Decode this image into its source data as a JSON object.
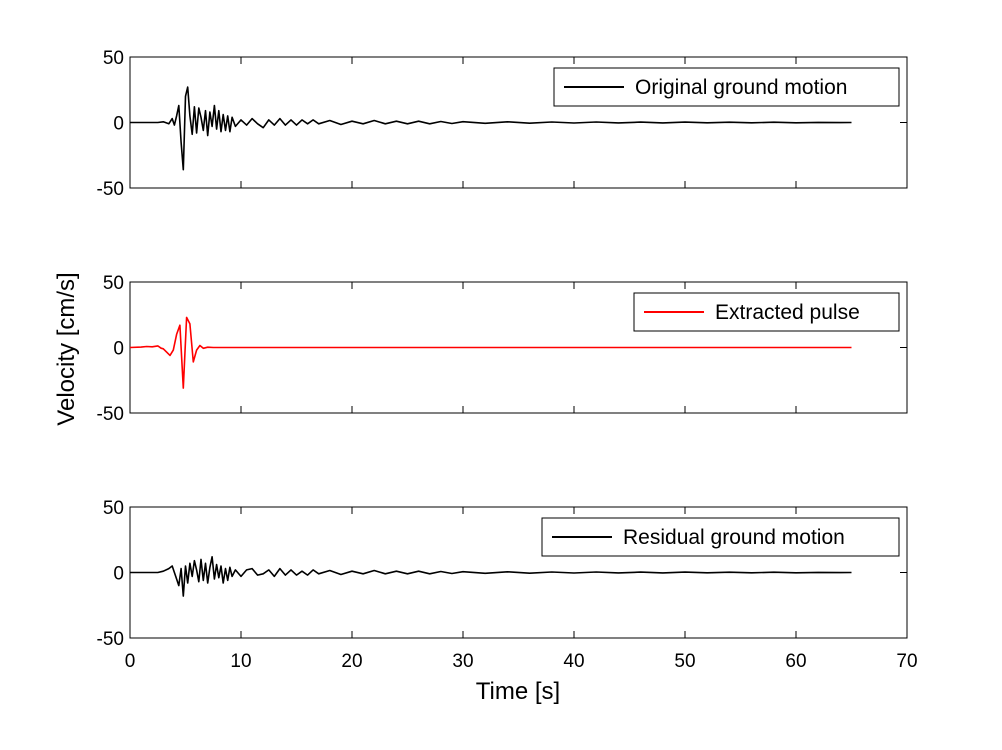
{
  "chart_data": {
    "type": "line",
    "xlabel": "Time [s]",
    "ylabel": "Velocity [cm/s]",
    "xlim": [
      0,
      70
    ],
    "xticks": [
      0,
      10,
      20,
      30,
      40,
      50,
      60,
      70
    ],
    "ylim": [
      -50,
      50
    ],
    "yticks": [
      -50,
      0,
      50
    ],
    "grid": false,
    "panels": [
      {
        "legend": {
          "label": "Original ground motion",
          "placement": "top-right",
          "color": "#000000"
        },
        "series": [
          {
            "name": "Original ground motion",
            "color": "#000000",
            "x": [
              0,
              2.5,
              3.0,
              3.5,
              3.8,
              4.0,
              4.2,
              4.4,
              4.6,
              4.8,
              5.0,
              5.2,
              5.4,
              5.6,
              5.8,
              6.0,
              6.2,
              6.4,
              6.6,
              6.8,
              7.0,
              7.2,
              7.4,
              7.6,
              7.8,
              8.0,
              8.2,
              8.4,
              8.6,
              8.8,
              9.0,
              9.2,
              9.5,
              10.0,
              10.5,
              11.0,
              11.5,
              12.0,
              12.5,
              13.0,
              13.5,
              14.0,
              14.5,
              15.0,
              15.5,
              16.0,
              16.5,
              17.0,
              18.0,
              19.0,
              20.0,
              21.0,
              22.0,
              23.0,
              24.0,
              25.0,
              26.0,
              27.0,
              28.0,
              29.0,
              30.0,
              32.0,
              34.0,
              36.0,
              38.0,
              40.0,
              42.0,
              44.0,
              46.0,
              48.0,
              50.0,
              52.0,
              54.0,
              56.0,
              58.0,
              60.0,
              62.0,
              64.0,
              65.0
            ],
            "y": [
              0,
              0,
              0.5,
              -1,
              3,
              -2,
              5,
              13,
              -15,
              -36,
              20,
              27,
              5,
              -9,
              12,
              -8,
              11,
              4,
              -6,
              9,
              -10,
              8,
              -3,
              13,
              -5,
              9,
              -7,
              6,
              -6,
              5,
              -7,
              4,
              -3,
              2,
              -2,
              3,
              -1,
              -4,
              2,
              -2,
              3,
              -2,
              2,
              -2,
              2,
              -1,
              2,
              -1,
              1.5,
              -1.5,
              1,
              -1,
              1.5,
              -1,
              1,
              -1,
              1,
              -1,
              0.8,
              -0.8,
              0.6,
              -0.6,
              0.5,
              -0.5,
              0.4,
              -0.4,
              0.4,
              -0.3,
              0.3,
              -0.3,
              0.3,
              -0.2,
              0.2,
              -0.2,
              0.2,
              -0.2,
              0.1,
              -0.1,
              0
            ]
          }
        ]
      },
      {
        "legend": {
          "label": "Extracted pulse",
          "placement": "top-right",
          "color": "#ff0000"
        },
        "series": [
          {
            "name": "Extracted pulse",
            "color": "#ff0000",
            "x": [
              0,
              1.0,
              1.5,
              2.0,
              2.5,
              2.8,
              3.0,
              3.3,
              3.6,
              3.9,
              4.2,
              4.5,
              4.8,
              5.1,
              5.4,
              5.7,
              6.0,
              6.3,
              6.6,
              7.0,
              7.5,
              8.0,
              65.0
            ],
            "y": [
              0,
              0.3,
              0.8,
              0.5,
              1.2,
              -0.5,
              -1.0,
              -3.5,
              -6,
              -2,
              10,
              17,
              -31,
              23,
              18,
              -11,
              -2,
              1.5,
              -0.6,
              0.2,
              0,
              0,
              0
            ]
          }
        ]
      },
      {
        "legend": {
          "label": "Residual ground motion",
          "placement": "top-right",
          "color": "#000000"
        },
        "series": [
          {
            "name": "Residual ground motion",
            "color": "#000000",
            "x": [
              0,
              2.5,
              3.0,
              3.5,
              3.8,
              4.0,
              4.2,
              4.4,
              4.6,
              4.8,
              5.0,
              5.2,
              5.4,
              5.6,
              5.8,
              6.0,
              6.2,
              6.4,
              6.6,
              6.8,
              7.0,
              7.2,
              7.4,
              7.6,
              7.8,
              8.0,
              8.2,
              8.4,
              8.6,
              8.8,
              9.0,
              9.2,
              9.5,
              10.0,
              10.5,
              11.0,
              11.5,
              12.0,
              12.5,
              13.0,
              13.5,
              14.0,
              14.5,
              15.0,
              15.5,
              16.0,
              16.5,
              17.0,
              18.0,
              19.0,
              20.0,
              21.0,
              22.0,
              23.0,
              24.0,
              25.0,
              26.0,
              27.0,
              28.0,
              29.0,
              30.0,
              32.0,
              34.0,
              36.0,
              38.0,
              40.0,
              42.0,
              44.0,
              46.0,
              48.0,
              50.0,
              52.0,
              54.0,
              56.0,
              58.0,
              60.0,
              62.0,
              64.0,
              65.0
            ],
            "y": [
              0,
              0,
              1,
              3,
              5,
              0,
              -5,
              -10,
              3,
              -18,
              5,
              -8,
              7,
              -3,
              9,
              2,
              -7,
              10,
              -6,
              7,
              -8,
              4,
              12,
              -5,
              6,
              -4,
              5,
              -8,
              3,
              -6,
              4,
              -3,
              2,
              -3,
              2,
              3,
              -2,
              -1,
              2,
              -3,
              3,
              -2,
              2,
              -2,
              1,
              -2,
              2,
              -1,
              1.5,
              -1.5,
              1,
              -1,
              1.5,
              -1,
              1,
              -1,
              1,
              -1,
              0.8,
              -0.8,
              0.6,
              -0.6,
              0.5,
              -0.5,
              0.4,
              -0.4,
              0.4,
              -0.3,
              0.3,
              -0.3,
              0.3,
              -0.2,
              0.2,
              -0.2,
              0.2,
              -0.2,
              0.1,
              -0.1,
              0
            ]
          }
        ]
      }
    ]
  }
}
